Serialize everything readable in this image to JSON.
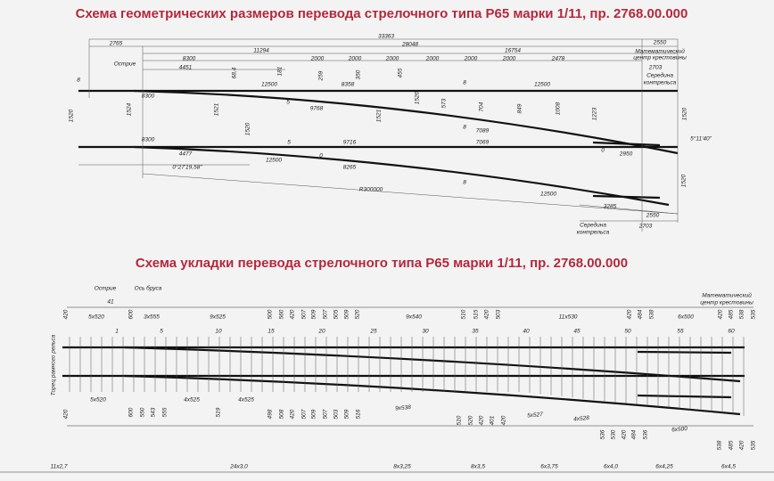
{
  "titles": {
    "top": "Схема геометрических размеров перевода стрелочного типа Р65 марки 1/11, пр. 2768.00.000",
    "bottom": "Схема укладки перевода стрелочного типа Р65 марки 1/11, пр. 2768.00.000"
  },
  "scheme1": {
    "labels": [
      "33363",
      "2550",
      "2765",
      "28048",
      "11294",
      "16754",
      "Математический",
      "центр крестовины",
      "Острие",
      "8300",
      "2000",
      "2000",
      "2000",
      "2000",
      "2000",
      "2000",
      "2478",
      "2703",
      "4451",
      "Середина",
      "контрельса",
      "181",
      "68,4",
      "259",
      "8358",
      "350",
      "12500",
      "455",
      "12500",
      "8",
      "8",
      "8300",
      "5",
      "5",
      "8",
      "9768",
      "1520",
      "1524",
      "1521",
      "1520",
      "1521",
      "1520",
      "573",
      "704",
      "849",
      "1008",
      "1223",
      "1520",
      "7089",
      "7069",
      "5°11'40\"",
      "8300",
      "9716",
      "4477",
      "0",
      "12500",
      "0",
      "2950",
      "0°27'19,58\"",
      "8265",
      "R300000",
      "8",
      "12500",
      "1520",
      "3285",
      "2550",
      "Середина",
      "контрельса",
      "2703"
    ]
  },
  "scheme2": {
    "labels": [
      "Острие",
      "Ось бруса",
      "41",
      "5x520",
      "3x555",
      "9x525",
      "9x540",
      "11x530",
      "6x500",
      "Математический",
      "центр крестовины",
      "420",
      "600",
      "500",
      "560",
      "420",
      "507",
      "509",
      "507",
      "505",
      "509",
      "520",
      "510",
      "515",
      "420",
      "503",
      "420",
      "484",
      "538",
      "420",
      "485",
      "538",
      "535",
      "1",
      "5",
      "10",
      "15",
      "20",
      "25",
      "30",
      "35",
      "40",
      "45",
      "50",
      "55",
      "60",
      "Торец рамного рельса",
      "420",
      "5x520",
      "600",
      "550",
      "543",
      "555",
      "4x525",
      "519",
      "4x525",
      "498",
      "508",
      "420",
      "507",
      "509",
      "507",
      "503",
      "509",
      "516",
      "9x538",
      "510",
      "520",
      "420",
      "401",
      "420",
      "5x527",
      "4x528",
      "536",
      "530",
      "420",
      "484",
      "536",
      "6x500",
      "538",
      "485",
      "420",
      "535",
      "11x2,7",
      "24x3,0",
      "8x3,25",
      "8x3,5",
      "6x3,75",
      "6x4,0",
      "6x4,25",
      "6x4,5"
    ]
  }
}
